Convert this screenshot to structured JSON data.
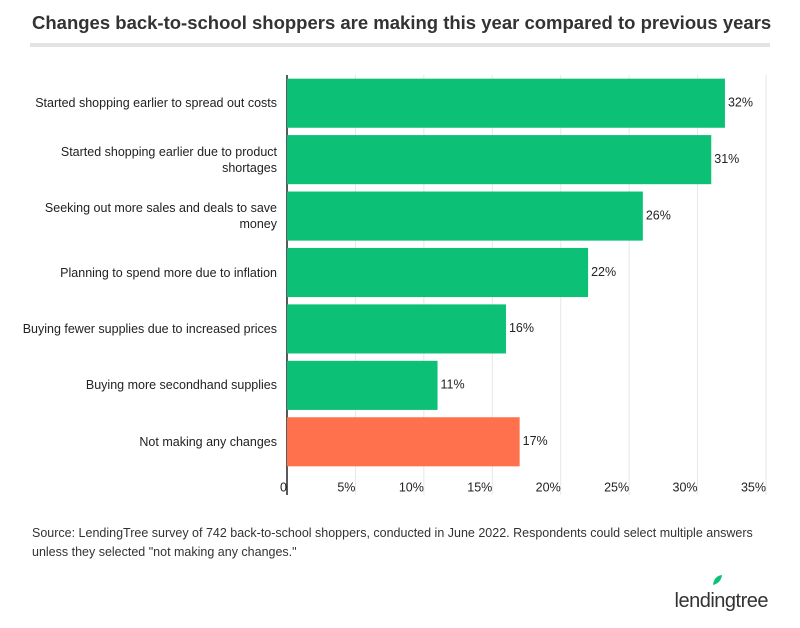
{
  "chart_data": {
    "type": "bar",
    "orientation": "horizontal",
    "title": "Changes back-to-school shoppers are making this year compared to previous years",
    "categories": [
      "Started shopping earlier to spread out costs",
      "Started shopping earlier due to product shortages",
      "Seeking out more sales and deals to save money",
      "Planning to spend more due to inflation",
      "Buying fewer supplies due to increased prices",
      "Buying more secondhand supplies",
      "Not making any changes"
    ],
    "values": [
      32,
      31,
      26,
      22,
      16,
      11,
      17
    ],
    "value_labels": [
      "32%",
      "31%",
      "26%",
      "22%",
      "16%",
      "11%",
      "17%"
    ],
    "colors": [
      "#0cc076",
      "#0cc076",
      "#0cc076",
      "#0cc076",
      "#0cc076",
      "#0cc076",
      "#ff714d"
    ],
    "xlim": [
      0,
      35
    ],
    "xticks": [
      0,
      {
        "value": 5,
        "label": "5%"
      },
      {
        "value": 10,
        "label": "10%"
      },
      {
        "value": 15,
        "label": "15%"
      },
      {
        "value": 20,
        "label": "20%"
      },
      {
        "value": 25,
        "label": "25%"
      },
      {
        "value": 30,
        "label": "30%"
      },
      {
        "value": 35,
        "label": "35%"
      }
    ],
    "grid": true,
    "source": "Source: LendingTree survey of 742 back-to-school shoppers, conducted in June 2022. Respondents could select multiple answers unless they selected \"not making any changes.\"",
    "logo": "lendingtree"
  }
}
